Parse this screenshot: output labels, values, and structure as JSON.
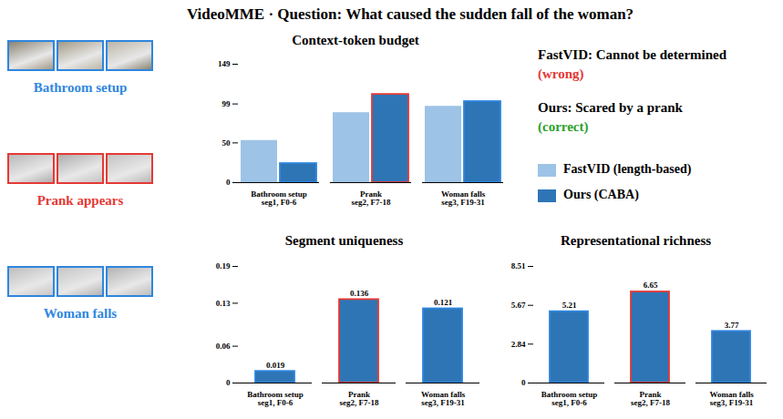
{
  "title": "VideoMME · Question: What caused the sudden fall of the woman?",
  "segments": [
    {
      "label": "Bathroom setup",
      "color": "#2e86de"
    },
    {
      "label": "Prank appears",
      "color": "#e53935"
    },
    {
      "label": "Woman falls",
      "color": "#2e86de"
    }
  ],
  "answers": [
    {
      "text": "FastVID: Cannot be determined",
      "verdict": "(wrong)",
      "verdict_color": "#e53935"
    },
    {
      "text": "Ours: Scared by a prank",
      "verdict": "(correct)",
      "verdict_color": "#2ca02c"
    }
  ],
  "chart_data": [
    {
      "type": "bar",
      "title": "Context-token budget",
      "categories": [
        "Bathroom setup\nseg1, F0-6",
        "Prank\nseg2, F7-18",
        "Woman falls\nseg3, F19-31"
      ],
      "series": [
        {
          "name": "FastVID (length-based)",
          "color": "#9dc3e6",
          "values": [
            53,
            88,
            96
          ]
        },
        {
          "name": "Ours (CABA)",
          "color": "#2e75b6",
          "values": [
            24,
            111,
            102
          ]
        }
      ],
      "ylim": [
        0,
        149
      ],
      "yticks": [
        0,
        50,
        99,
        149
      ],
      "legend": "right"
    },
    {
      "type": "bar",
      "title": "Segment uniqueness",
      "categories": [
        "Bathroom setup\nseg1, F0-6",
        "Prank\nseg2, F7-18",
        "Woman falls\nseg3, F19-31"
      ],
      "values": [
        0.019,
        0.136,
        0.121
      ],
      "color": "#2e75b6",
      "ylim": [
        0,
        0.19
      ],
      "yticks": [
        0,
        0.06,
        0.13,
        0.19
      ],
      "data_labels": true
    },
    {
      "type": "bar",
      "title": "Representational richness",
      "categories": [
        "Bathroom setup\nseg1, F0-6",
        "Prank\nseg2, F7-18",
        "Woman falls\nseg3, F19-31"
      ],
      "values": [
        5.21,
        6.65,
        3.77
      ],
      "color": "#2e75b6",
      "ylim": [
        0,
        8.51
      ],
      "yticks": [
        0,
        2.84,
        5.67,
        8.51
      ],
      "data_labels": true
    }
  ]
}
